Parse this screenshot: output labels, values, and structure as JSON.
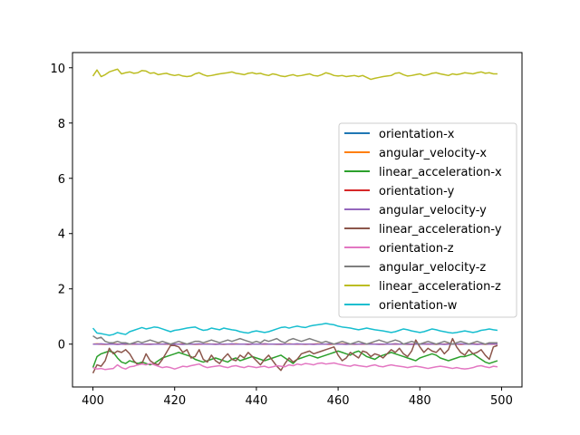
{
  "chart_data": {
    "type": "line",
    "title": "",
    "xlabel": "",
    "ylabel": "",
    "xlim": [
      395,
      505
    ],
    "ylim": [
      -1.55,
      10.55
    ],
    "x_ticks": [
      400,
      420,
      440,
      460,
      480,
      500
    ],
    "y_ticks": [
      0,
      2,
      4,
      6,
      8,
      10
    ],
    "grid": false,
    "legend_position": "center-right",
    "x": [
      400,
      401,
      402,
      403,
      404,
      405,
      406,
      407,
      408,
      409,
      410,
      411,
      412,
      413,
      414,
      415,
      416,
      417,
      418,
      419,
      420,
      421,
      422,
      423,
      424,
      425,
      426,
      427,
      428,
      429,
      430,
      431,
      432,
      433,
      434,
      435,
      436,
      437,
      438,
      439,
      440,
      441,
      442,
      443,
      444,
      445,
      446,
      447,
      448,
      449,
      450,
      451,
      452,
      453,
      454,
      455,
      456,
      457,
      458,
      459,
      460,
      461,
      462,
      463,
      464,
      465,
      466,
      467,
      468,
      469,
      470,
      471,
      472,
      473,
      474,
      475,
      476,
      477,
      478,
      479,
      480,
      481,
      482,
      483,
      484,
      485,
      486,
      487,
      488,
      489,
      490,
      491,
      492,
      493,
      494,
      495,
      496,
      497,
      498,
      499
    ],
    "series": [
      {
        "name": "orientation-x",
        "color": "#1f77b4",
        "values": [
          0.0,
          0.0,
          0.0,
          0.0,
          0.0,
          0.0,
          0.0,
          0.0,
          0.0,
          0.0,
          0.0,
          0.0,
          0.0,
          0.0,
          0.0,
          0.0,
          0.0,
          0.0,
          0.0,
          0.0,
          0.0,
          0.0,
          0.0,
          0.0,
          0.0,
          0.0,
          0.0,
          0.0,
          0.0,
          0.0,
          0.0,
          0.0,
          0.0,
          0.0,
          0.0,
          0.0,
          0.0,
          0.0,
          0.0,
          0.0,
          0.0,
          0.0,
          0.0,
          0.0,
          0.0,
          0.0,
          0.0,
          0.0,
          0.0,
          0.0,
          0.0,
          0.0,
          0.0,
          0.0,
          0.0,
          0.0,
          0.0,
          0.0,
          0.0,
          0.0,
          0.0,
          0.0,
          0.0,
          0.0,
          0.0,
          0.0,
          0.0,
          0.0,
          0.0,
          0.0,
          0.0,
          0.0,
          0.0,
          0.0,
          0.0,
          0.0,
          0.0,
          0.0,
          0.0,
          0.0,
          0.0,
          0.0,
          0.0,
          0.0,
          0.0,
          0.0,
          0.0,
          0.0,
          0.0,
          0.0,
          0.0,
          0.0,
          0.0,
          0.0,
          0.0,
          0.0,
          0.0,
          0.0,
          0.0,
          0.0
        ]
      },
      {
        "name": "angular_velocity-x",
        "color": "#ff7f0e",
        "values": [
          0.0,
          0.01,
          0.0,
          -0.01,
          0.0,
          0.01,
          0.0,
          0.0,
          -0.01,
          0.0,
          0.01,
          0.0,
          0.0,
          -0.01,
          0.0,
          0.0,
          0.01,
          0.0,
          0.0,
          -0.01,
          0.0,
          0.0,
          0.01,
          0.0,
          0.0,
          -0.01,
          0.0,
          0.0,
          0.01,
          0.0,
          0.0,
          0.0,
          -0.01,
          0.0,
          0.0,
          0.01,
          0.0,
          0.0,
          -0.01,
          0.0,
          0.0,
          0.0,
          0.01,
          0.0,
          0.0,
          -0.01,
          0.0,
          0.0,
          0.01,
          0.0,
          0.0,
          0.0,
          -0.01,
          0.0,
          0.0,
          0.01,
          0.0,
          0.0,
          -0.01,
          0.0,
          0.0,
          0.01,
          0.0,
          0.0,
          -0.01,
          0.0,
          0.0,
          0.0,
          0.01,
          0.0,
          0.0,
          -0.01,
          0.0,
          0.0,
          0.01,
          0.0,
          0.0,
          -0.01,
          0.0,
          0.0,
          0.0,
          0.01,
          0.0,
          0.0,
          -0.01,
          0.0,
          0.0,
          0.01,
          0.0,
          0.0,
          -0.01,
          0.0,
          0.0,
          0.01,
          0.0,
          0.0,
          -0.01,
          0.0,
          0.0,
          0.0
        ]
      },
      {
        "name": "linear_acceleration-x",
        "color": "#2ca02c",
        "values": [
          -0.85,
          -0.45,
          -0.35,
          -0.3,
          -0.25,
          -0.3,
          -0.5,
          -0.65,
          -0.7,
          -0.6,
          -0.65,
          -0.7,
          -0.65,
          -0.7,
          -0.75,
          -0.7,
          -0.6,
          -0.5,
          -0.45,
          -0.4,
          -0.35,
          -0.3,
          -0.35,
          -0.4,
          -0.45,
          -0.55,
          -0.6,
          -0.65,
          -0.6,
          -0.55,
          -0.5,
          -0.55,
          -0.6,
          -0.65,
          -0.55,
          -0.5,
          -0.6,
          -0.55,
          -0.5,
          -0.45,
          -0.5,
          -0.55,
          -0.6,
          -0.55,
          -0.5,
          -0.45,
          -0.4,
          -0.5,
          -0.6,
          -0.7,
          -0.55,
          -0.5,
          -0.45,
          -0.4,
          -0.45,
          -0.5,
          -0.45,
          -0.4,
          -0.35,
          -0.3,
          -0.25,
          -0.3,
          -0.35,
          -0.4,
          -0.3,
          -0.25,
          -0.35,
          -0.45,
          -0.5,
          -0.55,
          -0.45,
          -0.4,
          -0.35,
          -0.3,
          -0.35,
          -0.4,
          -0.45,
          -0.5,
          -0.55,
          -0.6,
          -0.5,
          -0.45,
          -0.4,
          -0.35,
          -0.4,
          -0.5,
          -0.55,
          -0.6,
          -0.55,
          -0.5,
          -0.45,
          -0.45,
          -0.4,
          -0.35,
          -0.45,
          -0.55,
          -0.65,
          -0.7,
          -0.65,
          -0.6
        ]
      },
      {
        "name": "orientation-y",
        "color": "#d62728",
        "values": [
          0.0,
          0.0,
          0.0,
          0.0,
          0.0,
          0.0,
          0.0,
          0.0,
          0.0,
          0.0,
          0.0,
          0.0,
          0.0,
          0.0,
          0.0,
          0.0,
          0.0,
          0.0,
          0.0,
          0.0,
          0.0,
          0.0,
          0.0,
          0.0,
          0.0,
          0.0,
          0.0,
          0.0,
          0.0,
          0.0,
          0.0,
          0.0,
          0.0,
          0.0,
          0.0,
          0.0,
          0.0,
          0.0,
          0.0,
          0.0,
          0.0,
          0.0,
          0.0,
          0.0,
          0.0,
          0.0,
          0.0,
          0.0,
          0.0,
          0.0,
          0.0,
          0.0,
          0.0,
          0.0,
          0.0,
          0.0,
          0.0,
          0.0,
          0.0,
          0.0,
          0.0,
          0.0,
          0.0,
          0.0,
          0.0,
          0.0,
          0.0,
          0.0,
          0.0,
          0.0,
          0.0,
          0.0,
          0.0,
          0.0,
          0.0,
          0.0,
          0.0,
          0.0,
          0.0,
          0.0,
          0.0,
          0.0,
          0.0,
          0.0,
          0.0,
          0.0,
          0.0,
          0.0,
          0.0,
          0.0,
          0.0,
          0.0,
          0.0,
          0.0,
          0.0,
          0.0,
          0.0,
          0.0,
          0.0,
          0.0
        ]
      },
      {
        "name": "angular_velocity-y",
        "color": "#9467bd",
        "values": [
          0.0,
          0.0,
          0.01,
          0.0,
          0.0,
          0.0,
          -0.01,
          0.0,
          0.0,
          0.0,
          0.01,
          0.0,
          0.0,
          0.0,
          -0.01,
          0.0,
          0.0,
          0.0,
          0.01,
          0.0,
          0.0,
          0.0,
          -0.01,
          0.0,
          0.0,
          0.0,
          0.01,
          0.0,
          0.0,
          0.0,
          -0.01,
          0.0,
          0.0,
          0.0,
          0.01,
          0.0,
          0.0,
          0.0,
          -0.01,
          0.0,
          0.0,
          0.0,
          0.01,
          0.0,
          0.0,
          0.0,
          -0.01,
          0.0,
          0.0,
          0.0,
          0.01,
          0.0,
          0.0,
          0.0,
          -0.01,
          0.0,
          0.0,
          0.0,
          0.01,
          0.0,
          0.0,
          0.0,
          -0.01,
          0.0,
          0.0,
          0.0,
          0.01,
          0.0,
          0.0,
          0.0,
          -0.01,
          0.0,
          0.0,
          0.0,
          0.01,
          0.0,
          0.0,
          0.0,
          -0.01,
          0.0,
          0.0,
          0.0,
          0.01,
          0.0,
          0.0,
          0.0,
          -0.01,
          0.0,
          0.0,
          0.0,
          0.01,
          0.0,
          0.0,
          0.0,
          -0.01,
          0.0,
          0.0,
          0.0,
          0.01,
          0.0
        ]
      },
      {
        "name": "linear_acceleration-y",
        "color": "#8c564b",
        "values": [
          -1.05,
          -0.75,
          -0.8,
          -0.6,
          -0.15,
          -0.35,
          -0.25,
          -0.3,
          -0.2,
          -0.35,
          -0.6,
          -0.75,
          -0.7,
          -0.35,
          -0.6,
          -0.7,
          -0.75,
          -0.55,
          -0.3,
          -0.05,
          -0.05,
          -0.1,
          -0.3,
          -0.2,
          -0.5,
          -0.45,
          -0.2,
          -0.55,
          -0.65,
          -0.4,
          -0.6,
          -0.7,
          -0.5,
          -0.35,
          -0.55,
          -0.6,
          -0.4,
          -0.5,
          -0.3,
          -0.45,
          -0.6,
          -0.75,
          -0.55,
          -0.4,
          -0.6,
          -0.8,
          -0.95,
          -0.7,
          -0.5,
          -0.65,
          -0.55,
          -0.35,
          -0.3,
          -0.25,
          -0.35,
          -0.3,
          -0.25,
          -0.2,
          -0.15,
          -0.1,
          -0.4,
          -0.6,
          -0.5,
          -0.3,
          -0.4,
          -0.5,
          -0.25,
          -0.3,
          -0.45,
          -0.35,
          -0.4,
          -0.5,
          -0.35,
          -0.2,
          -0.3,
          -0.15,
          -0.35,
          -0.45,
          -0.25,
          0.15,
          -0.1,
          -0.3,
          -0.15,
          -0.25,
          -0.3,
          -0.15,
          -0.35,
          -0.2,
          0.2,
          -0.1,
          -0.3,
          -0.4,
          -0.2,
          -0.35,
          -0.3,
          -0.2,
          -0.4,
          -0.55,
          -0.1,
          -0.05
        ]
      },
      {
        "name": "orientation-z",
        "color": "#e377c2",
        "values": [
          -0.85,
          -0.9,
          -0.88,
          -0.92,
          -0.9,
          -0.88,
          -0.75,
          -0.85,
          -0.9,
          -0.82,
          -0.8,
          -0.75,
          -0.72,
          -0.75,
          -0.7,
          -0.75,
          -0.8,
          -0.85,
          -0.82,
          -0.85,
          -0.9,
          -0.85,
          -0.8,
          -0.82,
          -0.78,
          -0.75,
          -0.72,
          -0.8,
          -0.85,
          -0.82,
          -0.8,
          -0.78,
          -0.82,
          -0.85,
          -0.8,
          -0.78,
          -0.82,
          -0.85,
          -0.8,
          -0.82,
          -0.85,
          -0.82,
          -0.8,
          -0.85,
          -0.82,
          -0.78,
          -0.8,
          -0.82,
          -0.75,
          -0.78,
          -0.72,
          -0.75,
          -0.7,
          -0.72,
          -0.75,
          -0.7,
          -0.68,
          -0.72,
          -0.7,
          -0.68,
          -0.72,
          -0.75,
          -0.78,
          -0.8,
          -0.75,
          -0.78,
          -0.8,
          -0.82,
          -0.78,
          -0.75,
          -0.8,
          -0.82,
          -0.78,
          -0.75,
          -0.78,
          -0.8,
          -0.82,
          -0.85,
          -0.82,
          -0.8,
          -0.82,
          -0.85,
          -0.88,
          -0.85,
          -0.82,
          -0.8,
          -0.82,
          -0.85,
          -0.88,
          -0.85,
          -0.88,
          -0.9,
          -0.88,
          -0.85,
          -0.8,
          -0.78,
          -0.82,
          -0.85,
          -0.8,
          -0.82
        ]
      },
      {
        "name": "angular_velocity-z",
        "color": "#7f7f7f",
        "values": [
          0.3,
          0.2,
          0.25,
          0.1,
          0.05,
          0.05,
          0.1,
          0.05,
          0.05,
          0.0,
          0.05,
          0.1,
          0.05,
          0.1,
          0.15,
          0.1,
          0.05,
          0.1,
          0.05,
          0.0,
          0.05,
          0.1,
          0.05,
          0.0,
          0.05,
          0.1,
          0.1,
          0.05,
          0.1,
          0.15,
          0.1,
          0.05,
          0.1,
          0.15,
          0.1,
          0.15,
          0.2,
          0.15,
          0.1,
          0.05,
          0.1,
          0.05,
          0.15,
          0.1,
          0.15,
          0.2,
          0.1,
          0.05,
          0.15,
          0.2,
          0.15,
          0.1,
          0.15,
          0.2,
          0.15,
          0.1,
          0.05,
          0.1,
          0.05,
          0.0,
          0.05,
          0.1,
          0.05,
          0.0,
          0.05,
          0.1,
          0.05,
          0.0,
          0.05,
          0.1,
          0.15,
          0.1,
          0.05,
          0.1,
          0.15,
          0.1,
          0.0,
          0.05,
          0.1,
          0.05,
          0.0,
          0.05,
          0.1,
          0.05,
          0.0,
          0.05,
          0.1,
          0.05,
          0.0,
          0.05,
          0.1,
          0.05,
          0.0,
          0.05,
          0.1,
          0.05,
          0.0,
          0.05,
          0.05,
          0.05
        ]
      },
      {
        "name": "linear_acceleration-z",
        "color": "#bcbd22",
        "values": [
          9.7,
          9.92,
          9.68,
          9.75,
          9.85,
          9.9,
          9.95,
          9.78,
          9.82,
          9.85,
          9.8,
          9.82,
          9.9,
          9.88,
          9.8,
          9.82,
          9.75,
          9.78,
          9.8,
          9.75,
          9.72,
          9.75,
          9.7,
          9.68,
          9.7,
          9.78,
          9.82,
          9.75,
          9.7,
          9.72,
          9.75,
          9.78,
          9.8,
          9.82,
          9.85,
          9.8,
          9.78,
          9.75,
          9.8,
          9.82,
          9.78,
          9.8,
          9.75,
          9.72,
          9.78,
          9.75,
          9.7,
          9.68,
          9.72,
          9.75,
          9.7,
          9.72,
          9.75,
          9.78,
          9.72,
          9.7,
          9.75,
          9.82,
          9.78,
          9.72,
          9.7,
          9.72,
          9.68,
          9.7,
          9.72,
          9.68,
          9.72,
          9.65,
          9.58,
          9.62,
          9.65,
          9.68,
          9.7,
          9.72,
          9.8,
          9.82,
          9.75,
          9.7,
          9.72,
          9.75,
          9.78,
          9.72,
          9.75,
          9.8,
          9.82,
          9.78,
          9.75,
          9.72,
          9.78,
          9.75,
          9.78,
          9.82,
          9.8,
          9.78,
          9.82,
          9.85,
          9.8,
          9.82,
          9.78,
          9.78
        ]
      },
      {
        "name": "orientation-w",
        "color": "#17becf",
        "values": [
          0.58,
          0.4,
          0.38,
          0.35,
          0.32,
          0.35,
          0.42,
          0.38,
          0.35,
          0.45,
          0.5,
          0.55,
          0.6,
          0.55,
          0.58,
          0.62,
          0.6,
          0.55,
          0.5,
          0.45,
          0.5,
          0.52,
          0.55,
          0.58,
          0.6,
          0.62,
          0.55,
          0.5,
          0.52,
          0.58,
          0.55,
          0.52,
          0.58,
          0.55,
          0.52,
          0.5,
          0.45,
          0.42,
          0.4,
          0.45,
          0.48,
          0.45,
          0.42,
          0.45,
          0.5,
          0.55,
          0.6,
          0.62,
          0.58,
          0.62,
          0.65,
          0.62,
          0.6,
          0.65,
          0.68,
          0.7,
          0.72,
          0.75,
          0.72,
          0.7,
          0.65,
          0.62,
          0.6,
          0.58,
          0.55,
          0.52,
          0.55,
          0.58,
          0.55,
          0.52,
          0.5,
          0.48,
          0.45,
          0.42,
          0.45,
          0.5,
          0.55,
          0.52,
          0.48,
          0.45,
          0.42,
          0.45,
          0.5,
          0.55,
          0.52,
          0.48,
          0.45,
          0.42,
          0.4,
          0.42,
          0.45,
          0.48,
          0.45,
          0.42,
          0.45,
          0.5,
          0.52,
          0.55,
          0.52,
          0.5
        ]
      }
    ]
  }
}
